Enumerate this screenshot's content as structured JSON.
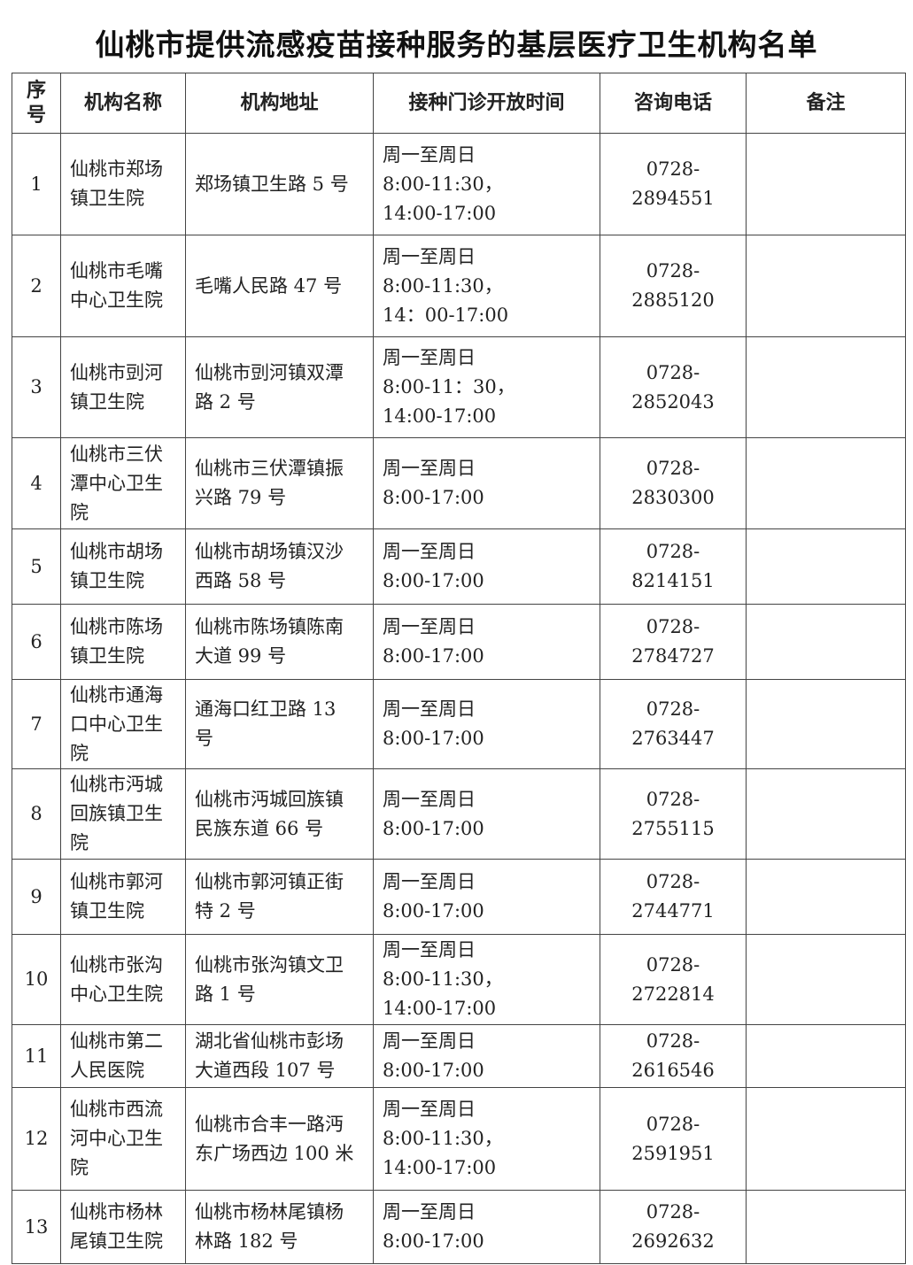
{
  "title": "仙桃市提供流感疫苗接种服务的基层医疗卫生机构名单",
  "headers": [
    "序\n号",
    "机构名称",
    "机构地址",
    "接种门诊开放时间",
    "咨询电话",
    "备注"
  ],
  "rows": [
    {
      "no": "1",
      "name": "仙桃市郑场\n镇卫生院",
      "address": "郑场镇卫生路 5 号",
      "hours": "周一至周日\n8:00-11:30，\n14:00-17:00",
      "phone": "0728-2894551",
      "note": ""
    },
    {
      "no": "2",
      "name": "仙桃市毛嘴\n中心卫生院",
      "address": "毛嘴人民路 47 号",
      "hours": "周一至周日\n8:00-11:30，\n14：00-17:00",
      "phone": "0728-2885120",
      "note": ""
    },
    {
      "no": "3",
      "name": "仙桃市剅河\n镇卫生院",
      "address": "仙桃市剅河镇双潭\n路 2 号",
      "hours": "周一至周日\n8:00-11：30，\n14:00-17:00",
      "phone": "0728-2852043",
      "note": ""
    },
    {
      "no": "4",
      "name": "仙桃市三伏\n潭中心卫生\n院",
      "address": "仙桃市三伏潭镇振\n兴路 79 号",
      "hours": "周一至周日\n8:00-17:00",
      "phone": "0728-2830300",
      "note": ""
    },
    {
      "no": "5",
      "name": "仙桃市胡场\n镇卫生院",
      "address": "仙桃市胡场镇汉沙\n西路 58 号",
      "hours": "周一至周日\n8:00-17:00",
      "phone": "0728-8214151",
      "note": ""
    },
    {
      "no": "6",
      "name": "仙桃市陈场\n镇卫生院",
      "address": "仙桃市陈场镇陈南\n大道 99 号",
      "hours": "周一至周日\n8:00-17:00",
      "phone": "0728-2784727",
      "note": ""
    },
    {
      "no": "7",
      "name": "仙桃市通海\n口中心卫生\n院",
      "address": "通海口红卫路 13\n号",
      "hours": "周一至周日\n8:00-17:00",
      "phone": "0728-2763447",
      "note": ""
    },
    {
      "no": "8",
      "name": "仙桃市沔城\n回族镇卫生\n院",
      "address": "仙桃市沔城回族镇\n民族东道 66 号",
      "hours": "周一至周日\n8:00-17:00",
      "phone": "0728-2755115",
      "note": ""
    },
    {
      "no": "9",
      "name": "仙桃市郭河\n镇卫生院",
      "address": "仙桃市郭河镇正街\n特 2 号",
      "hours": "周一至周日\n8:00-17:00",
      "phone": "0728-2744771",
      "note": ""
    },
    {
      "no": "10",
      "name": "仙桃市张沟\n中心卫生院",
      "address": "仙桃市张沟镇文卫\n路 1 号",
      "hours": "周一至周日\n8:00-11:30，\n14:00-17:00",
      "phone": "0728-2722814",
      "note": ""
    },
    {
      "no": "11",
      "name": "仙桃市第二\n人民医院",
      "address": "湖北省仙桃市彭场\n大道西段 107 号",
      "hours": "周一至周日\n8:00-17:00",
      "phone": "0728-2616546",
      "note": ""
    },
    {
      "no": "12",
      "name": "仙桃市西流\n河中心卫生\n院",
      "address": "仙桃市合丰一路沔\n东广场西边 100 米",
      "hours": "周一至周日\n8:00-11:30，\n14:00-17:00",
      "phone": "0728-2591951",
      "note": ""
    },
    {
      "no": "13",
      "name": "仙桃市杨林\n尾镇卫生院",
      "address": "仙桃市杨林尾镇杨\n林路 182 号",
      "hours": "周一至周日\n8:00-17:00",
      "phone": "0728-2692632",
      "note": ""
    }
  ]
}
